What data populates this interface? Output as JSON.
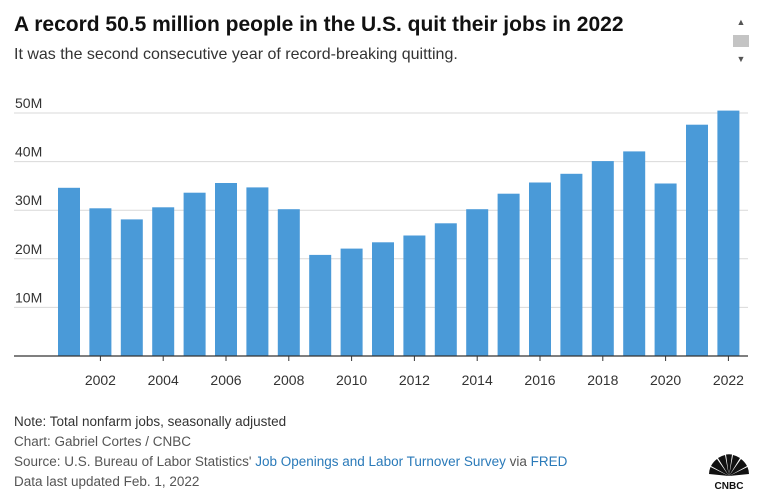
{
  "title": "A record 50.5 million people in the U.S. quit their jobs in 2022",
  "subtitle": "It was the second consecutive year of record-breaking quitting.",
  "notes": {
    "note": "Note: Total nonfarm jobs, seasonally adjusted",
    "credit": "Chart: Gabriel Cortes / CNBC",
    "source_prefix": "Source: U.S. Bureau of Labor Statistics'",
    "source_link1": "Job Openings and Labor Turnover Survey",
    "source_via": "via",
    "source_link2": "FRED",
    "updated": "Data last updated Feb. 1, 2022"
  },
  "logo": {
    "text": "CNBC"
  },
  "colors": {
    "bar": "#4a9ad8",
    "link": "#2a7ab9",
    "grid": "#d9d9d9",
    "axis": "#333333"
  },
  "chart_data": {
    "type": "bar",
    "categories": [
      "2001",
      "2002",
      "2003",
      "2004",
      "2005",
      "2006",
      "2007",
      "2008",
      "2009",
      "2010",
      "2011",
      "2012",
      "2013",
      "2014",
      "2015",
      "2016",
      "2017",
      "2018",
      "2019",
      "2020",
      "2021",
      "2022"
    ],
    "values": [
      34.6,
      30.4,
      28.1,
      30.6,
      33.6,
      35.6,
      34.7,
      30.2,
      20.8,
      22.1,
      23.4,
      24.8,
      27.3,
      30.2,
      33.4,
      35.7,
      37.5,
      40.1,
      42.1,
      35.5,
      47.6,
      50.5
    ],
    "x_tick_labels": [
      "2002",
      "2004",
      "2006",
      "2008",
      "2010",
      "2012",
      "2014",
      "2016",
      "2018",
      "2020",
      "2022"
    ],
    "y_ticks": [
      10,
      20,
      30,
      40,
      50
    ],
    "y_tick_labels": [
      "10M",
      "20M",
      "30M",
      "40M",
      "50M"
    ],
    "ylim": [
      0,
      50
    ],
    "unit": "million",
    "grid": true
  }
}
